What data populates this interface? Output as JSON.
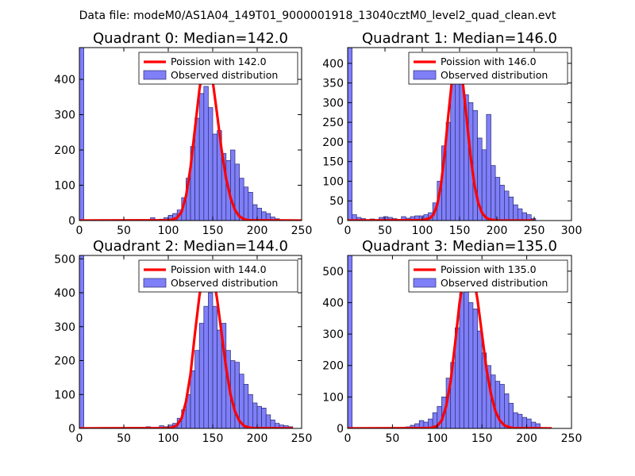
{
  "suptitle": "Data file: modeM0/AS1A04_149T01_9000001918_13040cztM0_level2_quad_clean.evt",
  "colors": {
    "bar_fill": "#7f7ff8",
    "bar_edge": "#2a2a70",
    "fit_line": "#ff0000"
  },
  "chart_data": [
    {
      "type": "bar",
      "title": "Quadrant 0: Median=142.0",
      "legend": {
        "fit_label": "Poission with 142.0",
        "hist_label": "Observed distribution",
        "placement": "top-right"
      },
      "median": 142.0,
      "xlim": [
        0,
        250
      ],
      "ylim": [
        0,
        490
      ],
      "xticks": [
        0,
        50,
        100,
        150,
        200,
        250
      ],
      "yticks": [
        0,
        100,
        200,
        300,
        400
      ],
      "bin_width": 5,
      "bins": [
        [
          0,
          490
        ],
        [
          80,
          8
        ],
        [
          90,
          4
        ],
        [
          95,
          8
        ],
        [
          100,
          15
        ],
        [
          105,
          20
        ],
        [
          110,
          30
        ],
        [
          115,
          65
        ],
        [
          120,
          120
        ],
        [
          125,
          210
        ],
        [
          130,
          290
        ],
        [
          135,
          360
        ],
        [
          140,
          380
        ],
        [
          145,
          320
        ],
        [
          150,
          245
        ],
        [
          155,
          255
        ],
        [
          160,
          190
        ],
        [
          165,
          170
        ],
        [
          170,
          200
        ],
        [
          175,
          160
        ],
        [
          180,
          120
        ],
        [
          185,
          95
        ],
        [
          190,
          80
        ],
        [
          195,
          45
        ],
        [
          200,
          35
        ],
        [
          205,
          25
        ],
        [
          210,
          20
        ],
        [
          215,
          10
        ],
        [
          220,
          5
        ]
      ],
      "fit_curve": [
        [
          0,
          0
        ],
        [
          100,
          1
        ],
        [
          105,
          3
        ],
        [
          110,
          8
        ],
        [
          115,
          25
        ],
        [
          120,
          70
        ],
        [
          125,
          150
        ],
        [
          130,
          260
        ],
        [
          135,
          370
        ],
        [
          140,
          455
        ],
        [
          142,
          470
        ],
        [
          145,
          455
        ],
        [
          150,
          395
        ],
        [
          155,
          300
        ],
        [
          160,
          200
        ],
        [
          165,
          120
        ],
        [
          170,
          65
        ],
        [
          175,
          30
        ],
        [
          180,
          12
        ],
        [
          185,
          4
        ],
        [
          190,
          1
        ],
        [
          250,
          0
        ]
      ]
    },
    {
      "type": "bar",
      "title": "Quadrant 1: Median=146.0",
      "legend": {
        "fit_label": "Poission with 146.0",
        "hist_label": "Observed distribution",
        "placement": "top-right"
      },
      "median": 146.0,
      "xlim": [
        0,
        300
      ],
      "ylim": [
        0,
        440
      ],
      "xticks": [
        0,
        50,
        100,
        150,
        200,
        250,
        300
      ],
      "yticks": [
        0,
        50,
        100,
        150,
        200,
        250,
        300,
        350,
        400
      ],
      "bin_width": 6,
      "bins": [
        [
          0,
          440
        ],
        [
          6,
          15
        ],
        [
          12,
          8
        ],
        [
          18,
          5
        ],
        [
          30,
          4
        ],
        [
          42,
          8
        ],
        [
          48,
          10
        ],
        [
          54,
          8
        ],
        [
          60,
          5
        ],
        [
          72,
          10
        ],
        [
          78,
          6
        ],
        [
          84,
          10
        ],
        [
          90,
          12
        ],
        [
          96,
          12
        ],
        [
          102,
          15
        ],
        [
          108,
          20
        ],
        [
          114,
          45
        ],
        [
          120,
          100
        ],
        [
          126,
          190
        ],
        [
          132,
          250
        ],
        [
          138,
          380
        ],
        [
          144,
          410
        ],
        [
          150,
          355
        ],
        [
          156,
          320
        ],
        [
          162,
          300
        ],
        [
          168,
          280
        ],
        [
          174,
          210
        ],
        [
          180,
          180
        ],
        [
          186,
          270
        ],
        [
          192,
          140
        ],
        [
          198,
          110
        ],
        [
          204,
          90
        ],
        [
          210,
          75
        ],
        [
          216,
          60
        ],
        [
          222,
          40
        ],
        [
          228,
          30
        ],
        [
          234,
          20
        ],
        [
          240,
          15
        ],
        [
          246,
          5
        ]
      ],
      "fit_curve": [
        [
          0,
          0
        ],
        [
          100,
          1
        ],
        [
          110,
          6
        ],
        [
          115,
          15
        ],
        [
          120,
          40
        ],
        [
          125,
          90
        ],
        [
          130,
          170
        ],
        [
          135,
          270
        ],
        [
          140,
          360
        ],
        [
          146,
          415
        ],
        [
          150,
          400
        ],
        [
          155,
          340
        ],
        [
          160,
          250
        ],
        [
          165,
          160
        ],
        [
          170,
          90
        ],
        [
          175,
          45
        ],
        [
          180,
          20
        ],
        [
          185,
          8
        ],
        [
          190,
          3
        ],
        [
          200,
          0
        ],
        [
          250,
          0
        ]
      ]
    },
    {
      "type": "bar",
      "title": "Quadrant 2: Median=144.0",
      "legend": {
        "fit_label": "Poission with 144.0",
        "hist_label": "Observed distribution",
        "placement": "top-right"
      },
      "median": 144.0,
      "xlim": [
        0,
        250
      ],
      "ylim": [
        0,
        510
      ],
      "xticks": [
        0,
        50,
        100,
        150,
        200,
        250
      ],
      "yticks": [
        0,
        100,
        200,
        300,
        400,
        500
      ],
      "bin_width": 5,
      "bins": [
        [
          0,
          510
        ],
        [
          75,
          5
        ],
        [
          90,
          8
        ],
        [
          95,
          5
        ],
        [
          100,
          10
        ],
        [
          105,
          15
        ],
        [
          110,
          30
        ],
        [
          115,
          55
        ],
        [
          120,
          100
        ],
        [
          125,
          170
        ],
        [
          130,
          230
        ],
        [
          135,
          310
        ],
        [
          140,
          360
        ],
        [
          145,
          400
        ],
        [
          150,
          360
        ],
        [
          155,
          290
        ],
        [
          160,
          310
        ],
        [
          165,
          230
        ],
        [
          170,
          200
        ],
        [
          175,
          195
        ],
        [
          180,
          160
        ],
        [
          185,
          130
        ],
        [
          190,
          100
        ],
        [
          195,
          75
        ],
        [
          200,
          65
        ],
        [
          205,
          60
        ],
        [
          210,
          40
        ],
        [
          215,
          25
        ],
        [
          220,
          15
        ],
        [
          225,
          10
        ],
        [
          230,
          8
        ],
        [
          235,
          5
        ]
      ],
      "fit_curve": [
        [
          0,
          0
        ],
        [
          100,
          1
        ],
        [
          105,
          3
        ],
        [
          110,
          10
        ],
        [
          115,
          30
        ],
        [
          120,
          80
        ],
        [
          125,
          160
        ],
        [
          130,
          280
        ],
        [
          135,
          390
        ],
        [
          140,
          470
        ],
        [
          144,
          490
        ],
        [
          150,
          460
        ],
        [
          155,
          380
        ],
        [
          160,
          280
        ],
        [
          165,
          180
        ],
        [
          170,
          100
        ],
        [
          175,
          50
        ],
        [
          180,
          22
        ],
        [
          185,
          8
        ],
        [
          190,
          3
        ],
        [
          195,
          1
        ],
        [
          240,
          0
        ]
      ]
    },
    {
      "type": "bar",
      "title": "Quadrant 3: Median=135.0",
      "legend": {
        "fit_label": "Poission with 135.0",
        "hist_label": "Observed distribution",
        "placement": "top-right"
      },
      "median": 135.0,
      "xlim": [
        0,
        250
      ],
      "ylim": [
        0,
        550
      ],
      "xticks": [
        0,
        50,
        100,
        150,
        200,
        250
      ],
      "yticks": [
        0,
        100,
        200,
        300,
        400,
        500
      ],
      "bin_width": 5,
      "bins": [
        [
          0,
          550
        ],
        [
          65,
          5
        ],
        [
          70,
          10
        ],
        [
          75,
          15
        ],
        [
          80,
          25
        ],
        [
          85,
          20
        ],
        [
          90,
          30
        ],
        [
          95,
          50
        ],
        [
          100,
          70
        ],
        [
          105,
          100
        ],
        [
          110,
          160
        ],
        [
          115,
          210
        ],
        [
          120,
          320
        ],
        [
          125,
          430
        ],
        [
          130,
          460
        ],
        [
          135,
          400
        ],
        [
          140,
          380
        ],
        [
          145,
          310
        ],
        [
          150,
          240
        ],
        [
          155,
          200
        ],
        [
          160,
          170
        ],
        [
          165,
          150
        ],
        [
          170,
          140
        ],
        [
          175,
          110
        ],
        [
          180,
          80
        ],
        [
          185,
          50
        ],
        [
          190,
          45
        ],
        [
          195,
          35
        ],
        [
          200,
          30
        ],
        [
          205,
          20
        ],
        [
          210,
          15
        ]
      ],
      "fit_curve": [
        [
          0,
          0
        ],
        [
          90,
          1
        ],
        [
          95,
          3
        ],
        [
          100,
          8
        ],
        [
          105,
          25
        ],
        [
          110,
          70
        ],
        [
          115,
          150
        ],
        [
          120,
          270
        ],
        [
          125,
          400
        ],
        [
          130,
          490
        ],
        [
          135,
          525
        ],
        [
          140,
          490
        ],
        [
          145,
          410
        ],
        [
          150,
          300
        ],
        [
          155,
          190
        ],
        [
          160,
          110
        ],
        [
          165,
          55
        ],
        [
          170,
          25
        ],
        [
          175,
          10
        ],
        [
          180,
          4
        ],
        [
          185,
          1
        ],
        [
          228,
          0
        ]
      ]
    }
  ]
}
